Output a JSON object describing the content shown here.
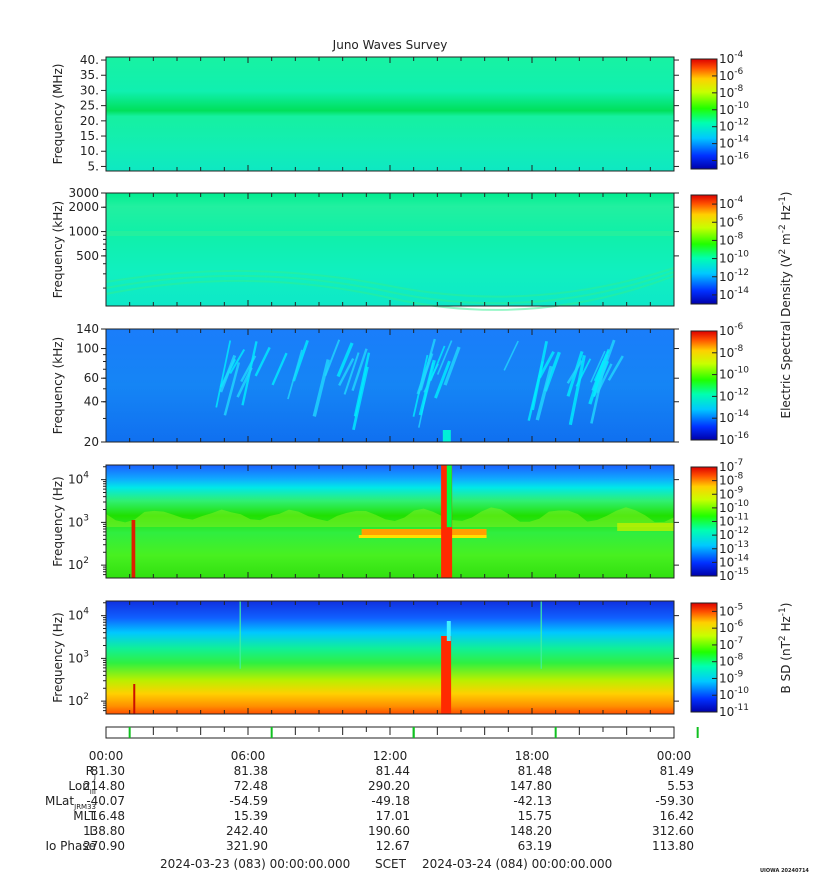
{
  "title": "Juno Waves Survey",
  "corner_label": "UIOWA 20240714",
  "panels": [
    {
      "id": "p1",
      "ylabel": "Frequency (MHz)",
      "ylabel_sup": "",
      "scale": "linear",
      "ylim": [
        3.5,
        41
      ],
      "ticks": [
        {
          "v": 5,
          "label": "5."
        },
        {
          "v": 10,
          "label": "10."
        },
        {
          "v": 15,
          "label": "15."
        },
        {
          "v": 20,
          "label": "20."
        },
        {
          "v": 25,
          "label": "25."
        },
        {
          "v": 30,
          "label": "30."
        },
        {
          "v": 35,
          "label": "35."
        },
        {
          "v": 40,
          "label": "40."
        }
      ],
      "cbar": {
        "min": -17,
        "max": -4,
        "labels": [
          -4,
          -6,
          -8,
          -10,
          -12,
          -14,
          -16
        ]
      }
    },
    {
      "id": "p2",
      "ylabel": "Frequency (kHz)",
      "ylabel_sup": "",
      "scale": "log",
      "ylim": [
        120,
        3000
      ],
      "ticks": [
        {
          "v": 500,
          "label": "500"
        },
        {
          "v": 1000,
          "label": "1000"
        },
        {
          "v": 2000,
          "label": "2000"
        },
        {
          "v": 3000,
          "label": "3000"
        }
      ],
      "cbar": {
        "min": -15,
        "max": -3,
        "labels": [
          -4,
          -6,
          -8,
          -10,
          -12,
          -14
        ]
      }
    },
    {
      "id": "p3",
      "ylabel": "Frequency (kHz)",
      "ylabel_sup": "",
      "scale": "log",
      "ylim": [
        20,
        140
      ],
      "ticks": [
        {
          "v": 20,
          "label": "20"
        },
        {
          "v": 40,
          "label": "40"
        },
        {
          "v": 60,
          "label": "60"
        },
        {
          "v": 100,
          "label": "100"
        },
        {
          "v": 140,
          "label": "140"
        }
      ],
      "cbar": {
        "min": -16,
        "max": -6,
        "labels": [
          -6,
          -8,
          -10,
          -12,
          -14,
          -16
        ]
      }
    },
    {
      "id": "p4",
      "ylabel": "Frequency (Hz)",
      "ylabel_sup": "",
      "scale": "log",
      "ylim": [
        50,
        22000
      ],
      "ticks": [
        {
          "v": 100,
          "label": "10",
          "sup": "2"
        },
        {
          "v": 1000,
          "label": "10",
          "sup": "3"
        },
        {
          "v": 10000,
          "label": "10",
          "sup": "4"
        }
      ],
      "cbar": {
        "min": -15,
        "max": -7,
        "labels": [
          -7,
          -8,
          -9,
          -10,
          -11,
          -12,
          -13,
          -14,
          -15
        ]
      }
    },
    {
      "id": "p5",
      "ylabel": "Frequency (Hz)",
      "ylabel_sup": "",
      "scale": "log",
      "ylim": [
        50,
        22000
      ],
      "ticks": [
        {
          "v": 100,
          "label": "10",
          "sup": "2"
        },
        {
          "v": 1000,
          "label": "10",
          "sup": "3"
        },
        {
          "v": 10000,
          "label": "10",
          "sup": "4"
        }
      ],
      "cbar": {
        "min": -11,
        "max": -4.5,
        "labels": [
          -5,
          -6,
          -7,
          -8,
          -9,
          -10,
          -11
        ]
      }
    }
  ],
  "colorbar_titles": {
    "e_field": "Electric Spectral Density (V",
    "b_field": "B SD (nT"
  },
  "chart_data": {
    "type": "heatmap",
    "title": "Juno Waves Survey",
    "x_range": [
      "2024-03-23 00:00",
      "2024-03-24 00:00"
    ],
    "x_ticks": [
      "00:00",
      "06:00",
      "12:00",
      "18:00",
      "00:00"
    ],
    "colorscale": "rainbow (blue-cyan-green-yellow-red)",
    "ephemeris": {
      "rows": [
        {
          "label": "R",
          "sub": "J",
          "values": [
            "81.30",
            "81.38",
            "81.44",
            "81.48",
            "81.49"
          ]
        },
        {
          "label": "Lon",
          "sub": "III",
          "values": [
            "214.80",
            "72.48",
            "290.20",
            "147.80",
            "5.53"
          ]
        },
        {
          "label": "MLat",
          "sub": "JRM33",
          "values": [
            "-40.07",
            "-54.59",
            "-49.18",
            "-42.13",
            "-59.30"
          ]
        },
        {
          "label": "MLT",
          "sub": "",
          "values": [
            "16.48",
            "15.39",
            "17.01",
            "15.75",
            "16.42"
          ]
        },
        {
          "label": "L",
          "sub": "",
          "values": [
            "138.80",
            "242.40",
            "190.60",
            "148.20",
            "312.60"
          ]
        },
        {
          "label": "Io Phase",
          "sub": "",
          "values": [
            "270.90",
            "321.90",
            "12.67",
            "63.19",
            "113.80"
          ]
        }
      ]
    },
    "features": [
      {
        "panel": "p1",
        "desc": "narrow enhanced band",
        "freq_MHz": 21.5
      },
      {
        "panel": "p4",
        "desc": "broadband burst",
        "time_hr": 14.6,
        "freq_range_Hz": [
          50,
          22000
        ]
      },
      {
        "panel": "p5",
        "desc": "broadband burst",
        "time_hr": 14.6,
        "freq_range_Hz": [
          50,
          2000
        ]
      }
    ]
  },
  "footer": {
    "start": "2024-03-23 (083) 00:00:00.000",
    "mid": "SCET",
    "end": "2024-03-24 (084) 00:00:00.000"
  }
}
